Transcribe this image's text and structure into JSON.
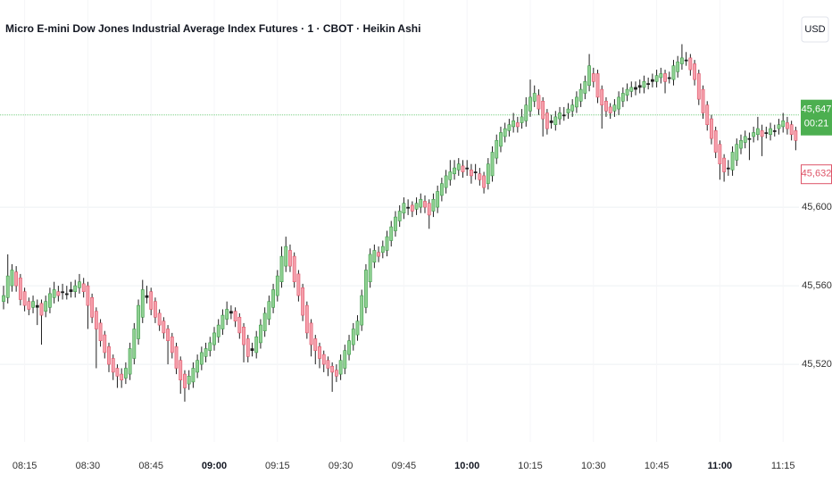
{
  "chart_data": {
    "type": "candlestick",
    "title": "Micro E-mini Dow Jones Industrial Average Index Futures · 1 · CBOT · Heikin Ashi",
    "currency": "USD",
    "up_color": "#8fd192",
    "up_border": "#3e9a49",
    "down_color": "#f59fab",
    "down_border": "#de5468",
    "grid": true,
    "ylim": [
      45480.5,
      45705.5
    ],
    "yticks": [
      {
        "value": 45520,
        "label": "45,520"
      },
      {
        "value": 45560,
        "label": "45,560"
      },
      {
        "value": 45600,
        "label": "45,600"
      }
    ],
    "last_price": {
      "value": 45647,
      "label": "45,647"
    },
    "countdown": "00:21",
    "close_price": {
      "value": 45632,
      "label": "45,632"
    },
    "categories": [
      null,
      null,
      null,
      null,
      null,
      "08:15",
      null,
      null,
      null,
      null,
      null,
      null,
      null,
      null,
      null,
      null,
      null,
      null,
      null,
      null,
      "08:30",
      null,
      null,
      null,
      null,
      null,
      null,
      null,
      null,
      null,
      null,
      null,
      null,
      null,
      null,
      "08:45",
      null,
      null,
      null,
      null,
      null,
      null,
      null,
      null,
      null,
      null,
      null,
      null,
      null,
      null,
      "09:00",
      null,
      null,
      null,
      null,
      null,
      null,
      null,
      null,
      null,
      null,
      null,
      null,
      null,
      null,
      "09:15",
      null,
      null,
      null,
      null,
      null,
      null,
      null,
      null,
      null,
      null,
      null,
      null,
      null,
      null,
      "09:30",
      null,
      null,
      null,
      null,
      null,
      null,
      null,
      null,
      null,
      null,
      null,
      null,
      null,
      null,
      "09:45",
      null,
      null,
      null,
      null,
      null,
      null,
      null,
      null,
      null,
      null,
      null,
      null,
      null,
      null,
      "10:00",
      null,
      null,
      null,
      null,
      null,
      null,
      null,
      null,
      null,
      null,
      null,
      null,
      null,
      null,
      "10:15",
      null,
      null,
      null,
      null,
      null,
      null,
      null,
      null,
      null,
      null,
      null,
      null,
      null,
      null,
      "10:30",
      null,
      null,
      null,
      null,
      null,
      null,
      null,
      null,
      null,
      null,
      null,
      null,
      null,
      null,
      "10:45",
      null,
      null,
      null,
      null,
      null,
      null,
      null,
      null,
      null,
      null,
      null,
      null,
      null,
      null,
      "11:00",
      null,
      null,
      null,
      null,
      null,
      null,
      null,
      null,
      null,
      null,
      null,
      null,
      null,
      null,
      "11:15",
      null,
      null,
      null
    ],
    "bold_categories": [
      "09:00",
      "10:00",
      "11:00"
    ],
    "ohlc": [
      [
        45552,
        45560,
        45548,
        45555
      ],
      [
        45554,
        45576,
        45551,
        45565
      ],
      [
        45560,
        45571,
        45557,
        45568
      ],
      [
        45567,
        45570,
        45557,
        45560
      ],
      [
        45564,
        45566,
        45550,
        45553
      ],
      [
        45557,
        45559,
        45547,
        45550
      ],
      [
        45552,
        45554,
        45545,
        45548
      ],
      [
        45549,
        45555,
        45546,
        45552
      ],
      [
        45550,
        45553,
        45540,
        45549
      ],
      [
        45551,
        45553,
        45530,
        45545
      ],
      [
        45547,
        45555,
        45544,
        45552
      ],
      [
        45549,
        45559,
        45546,
        45556
      ],
      [
        45554,
        45562,
        45551,
        45558
      ],
      [
        45557,
        45560,
        45552,
        45555
      ],
      [
        45557,
        45561,
        45553,
        45557
      ],
      [
        45556,
        45560,
        45553,
        45556
      ],
      [
        45557,
        45562,
        45554,
        45558
      ],
      [
        45557,
        45563,
        45554,
        45560
      ],
      [
        45559,
        45566,
        45556,
        45562
      ],
      [
        45561,
        45564,
        45554,
        45557
      ],
      [
        45560,
        45562,
        45538,
        45550
      ],
      [
        45554,
        45556,
        45541,
        45544
      ],
      [
        45547,
        45549,
        45518,
        45538
      ],
      [
        45541,
        45543,
        45529,
        45532
      ],
      [
        45535,
        45537,
        45523,
        45526
      ],
      [
        45529,
        45531,
        45516,
        45520
      ],
      [
        45523,
        45525,
        45512,
        45516
      ],
      [
        45518,
        45520,
        45508,
        45514
      ],
      [
        45515,
        45518,
        45508,
        45512
      ],
      [
        45513,
        45521,
        45510,
        45518
      ],
      [
        45515,
        45531,
        45512,
        45528
      ],
      [
        45523,
        45541,
        45520,
        45538
      ],
      [
        45533,
        45553,
        45530,
        45550
      ],
      [
        45544,
        45563,
        45541,
        45558
      ],
      [
        45554,
        45560,
        45551,
        45555
      ],
      [
        45557,
        45559,
        45545,
        45548
      ],
      [
        45552,
        45554,
        45541,
        45544
      ],
      [
        45546,
        45548,
        45537,
        45540
      ],
      [
        45542,
        45544,
        45533,
        45536
      ],
      [
        45538,
        45540,
        45520,
        45532
      ],
      [
        45534,
        45536,
        45523,
        45526
      ],
      [
        45529,
        45531,
        45515,
        45518
      ],
      [
        45522,
        45524,
        45505,
        45512
      ],
      [
        45515,
        45517,
        45501,
        45508
      ],
      [
        45510,
        45517,
        45507,
        45514
      ],
      [
        45511,
        45521,
        45508,
        45518
      ],
      [
        45516,
        45525,
        45513,
        45522
      ],
      [
        45520,
        45529,
        45517,
        45526
      ],
      [
        45524,
        45531,
        45521,
        45528
      ],
      [
        45527,
        45534,
        45524,
        45531
      ],
      [
        45530,
        45539,
        45527,
        45536
      ],
      [
        45534,
        45543,
        45531,
        45540
      ],
      [
        45538,
        45548,
        45535,
        45545
      ],
      [
        45543,
        45552,
        45540,
        45548
      ],
      [
        45547,
        45550,
        45543,
        45546
      ],
      [
        45547,
        45549,
        45539,
        45542
      ],
      [
        45544,
        45546,
        45533,
        45536
      ],
      [
        45539,
        45541,
        45521,
        45530
      ],
      [
        45533,
        45535,
        45521,
        45524
      ],
      [
        45527,
        45531,
        45524,
        45528
      ],
      [
        45526,
        45537,
        45523,
        45534
      ],
      [
        45531,
        45543,
        45528,
        45540
      ],
      [
        45537,
        45549,
        45534,
        45546
      ],
      [
        45543,
        45555,
        45540,
        45552
      ],
      [
        45549,
        45561,
        45546,
        45558
      ],
      [
        45555,
        45568,
        45552,
        45565
      ],
      [
        45562,
        45580,
        45559,
        45575
      ],
      [
        45570,
        45585,
        45567,
        45580
      ],
      [
        45578,
        45581,
        45567,
        45570
      ],
      [
        45575,
        45577,
        45559,
        45562
      ],
      [
        45566,
        45568,
        45552,
        45555
      ],
      [
        45559,
        45561,
        45542,
        45545
      ],
      [
        45550,
        45552,
        45533,
        45536
      ],
      [
        45541,
        45543,
        45524,
        45530
      ],
      [
        45533,
        45535,
        45520,
        45527
      ],
      [
        45529,
        45531,
        45518,
        45523
      ],
      [
        45525,
        45527,
        45516,
        45520
      ],
      [
        45522,
        45524,
        45514,
        45518
      ],
      [
        45519,
        45521,
        45506,
        45516
      ],
      [
        45517,
        45520,
        45511,
        45514
      ],
      [
        45515,
        45525,
        45512,
        45522
      ],
      [
        45518,
        45530,
        45515,
        45527
      ],
      [
        45525,
        45535,
        45522,
        45532
      ],
      [
        45530,
        45541,
        45527,
        45538
      ],
      [
        45535,
        45545,
        45532,
        45542
      ],
      [
        45540,
        45558,
        45537,
        45555
      ],
      [
        45549,
        45571,
        45546,
        45568
      ],
      [
        45562,
        45579,
        45559,
        45576
      ],
      [
        45572,
        45581,
        45569,
        45578
      ],
      [
        45577,
        45580,
        45572,
        45575
      ],
      [
        45577,
        45583,
        45574,
        45580
      ],
      [
        45578,
        45588,
        45575,
        45585
      ],
      [
        45583,
        45593,
        45580,
        45590
      ],
      [
        45588,
        45598,
        45585,
        45595
      ],
      [
        45593,
        45601,
        45590,
        45598
      ],
      [
        45597,
        45605,
        45594,
        45602
      ],
      [
        45600,
        45604,
        45596,
        45600
      ],
      [
        45601,
        45603,
        45595,
        45598
      ],
      [
        45599,
        45605,
        45596,
        45602
      ],
      [
        45600,
        45607,
        45597,
        45604
      ],
      [
        45603,
        45606,
        45597,
        45600
      ],
      [
        45602,
        45604,
        45589,
        45596
      ],
      [
        45598,
        45607,
        45595,
        45604
      ],
      [
        45600,
        45611,
        45597,
        45608
      ],
      [
        45606,
        45615,
        45603,
        45612
      ],
      [
        45610,
        45619,
        45607,
        45616
      ],
      [
        45614,
        45624,
        45611,
        45618
      ],
      [
        45617,
        45624,
        45614,
        45620
      ],
      [
        45619,
        45625,
        45616,
        45622
      ],
      [
        45621,
        45624,
        45615,
        45618
      ],
      [
        45620,
        45624,
        45616,
        45620
      ],
      [
        45619,
        45622,
        45612,
        45616
      ],
      [
        45618,
        45622,
        45614,
        45618
      ],
      [
        45617,
        45620,
        45611,
        45614
      ],
      [
        45616,
        45618,
        45607,
        45610
      ],
      [
        45612,
        45625,
        45609,
        45622
      ],
      [
        45616,
        45631,
        45613,
        45628
      ],
      [
        45625,
        45637,
        45622,
        45634
      ],
      [
        45631,
        45641,
        45628,
        45638
      ],
      [
        45636,
        45643,
        45633,
        45640
      ],
      [
        45639,
        45645,
        45636,
        45642
      ],
      [
        45641,
        45648,
        45638,
        45644
      ],
      [
        45643,
        45646,
        45638,
        45641
      ],
      [
        45643,
        45650,
        45640,
        45646
      ],
      [
        45644,
        45656,
        45641,
        45652
      ],
      [
        45649,
        45665,
        45646,
        45656
      ],
      [
        45654,
        45662,
        45651,
        45658
      ],
      [
        45657,
        45660,
        45647,
        45650
      ],
      [
        45654,
        45656,
        45636,
        45645
      ],
      [
        45648,
        45650,
        45637,
        45640
      ],
      [
        45643,
        45647,
        45640,
        45644
      ],
      [
        45642,
        45649,
        45639,
        45646
      ],
      [
        45645,
        45651,
        45642,
        45648
      ],
      [
        45647,
        45651,
        45644,
        45647
      ],
      [
        45648,
        45653,
        45645,
        45650
      ],
      [
        45649,
        45655,
        45646,
        45652
      ],
      [
        45651,
        45659,
        45648,
        45656
      ],
      [
        45654,
        45663,
        45651,
        45660
      ],
      [
        45658,
        45667,
        45655,
        45664
      ],
      [
        45662,
        45678,
        45659,
        45672
      ],
      [
        45668,
        45671,
        45661,
        45664
      ],
      [
        45668,
        45670,
        45653,
        45656
      ],
      [
        45660,
        45662,
        45640,
        45652
      ],
      [
        45654,
        45656,
        45646,
        45649
      ],
      [
        45651,
        45653,
        45645,
        45648
      ],
      [
        45649,
        45655,
        45646,
        45652
      ],
      [
        45650,
        45659,
        45647,
        45656
      ],
      [
        45654,
        45661,
        45651,
        45658
      ],
      [
        45657,
        45663,
        45654,
        45660
      ],
      [
        45659,
        45664,
        45656,
        45661
      ],
      [
        45661,
        45664,
        45657,
        45660
      ],
      [
        45661,
        45665,
        45658,
        45662
      ],
      [
        45661,
        45667,
        45658,
        45664
      ],
      [
        45663,
        45666,
        45660,
        45663
      ],
      [
        45664,
        45668,
        45661,
        45665
      ],
      [
        45664,
        45670,
        45661,
        45667
      ],
      [
        45666,
        45671,
        45663,
        45668
      ],
      [
        45668,
        45670,
        45658,
        45664
      ],
      [
        45666,
        45669,
        45663,
        45666
      ],
      [
        45665,
        45675,
        45662,
        45672
      ],
      [
        45669,
        45677,
        45666,
        45674
      ],
      [
        45673,
        45683,
        45670,
        45676
      ],
      [
        45675,
        45679,
        45672,
        45675
      ],
      [
        45676,
        45678,
        45667,
        45670
      ],
      [
        45673,
        45675,
        45662,
        45665
      ],
      [
        45668,
        45670,
        45652,
        45655
      ],
      [
        45660,
        45662,
        45645,
        45648
      ],
      [
        45652,
        45654,
        45639,
        45642
      ],
      [
        45645,
        45647,
        45632,
        45635
      ],
      [
        45639,
        45641,
        45625,
        45628
      ],
      [
        45632,
        45634,
        45614,
        45622
      ],
      [
        45625,
        45627,
        45613,
        45618
      ],
      [
        45620,
        45624,
        45616,
        45620
      ],
      [
        45619,
        45631,
        45616,
        45628
      ],
      [
        45624,
        45635,
        45621,
        45632
      ],
      [
        45630,
        45637,
        45627,
        45634
      ],
      [
        45633,
        45639,
        45630,
        45636
      ],
      [
        45635,
        45638,
        45624,
        45635
      ],
      [
        45636,
        45641,
        45633,
        45638
      ],
      [
        45637,
        45646,
        45634,
        45640
      ],
      [
        45639,
        45642,
        45626,
        45636
      ],
      [
        45638,
        45641,
        45635,
        45638
      ],
      [
        45637,
        45643,
        45634,
        45640
      ],
      [
        45639,
        45642,
        45636,
        45639
      ],
      [
        45640,
        45645,
        45637,
        45642
      ],
      [
        45641,
        45648,
        45638,
        45644
      ],
      [
        45643,
        45646,
        45637,
        45640
      ],
      [
        45642,
        45644,
        45634,
        45637
      ],
      [
        45639,
        45641,
        45629,
        45634
      ]
    ]
  }
}
